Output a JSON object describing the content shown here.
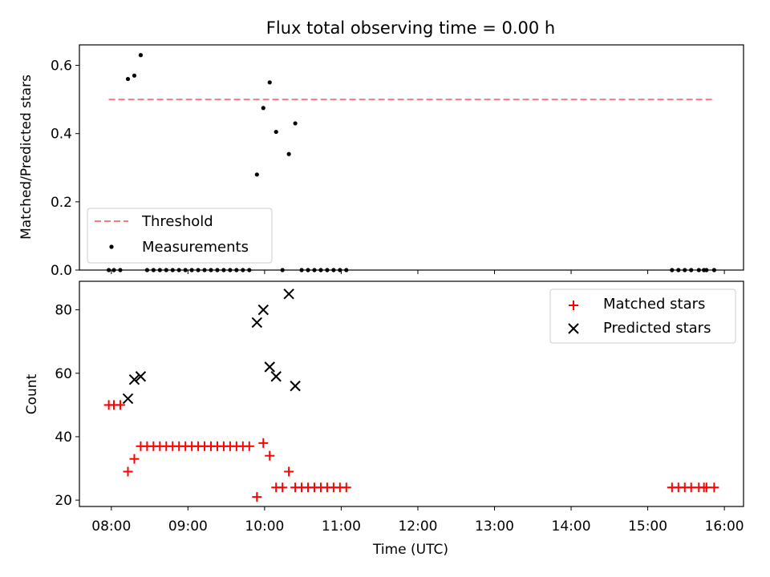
{
  "chart_data": [
    {
      "type": "scatter",
      "title": "Flux total observing time = 0.00 h",
      "xlabel": "",
      "ylabel": "Matched/Predicted stars",
      "xlim": [
        "07:35",
        "16:15"
      ],
      "ylim": [
        0,
        0.66
      ],
      "y_ticks": [
        "0.0",
        "0.2",
        "0.4",
        "0.6"
      ],
      "grid": false,
      "legend_position": "lower-left",
      "threshold": {
        "name": "Threshold",
        "value": 0.5,
        "x_range": [
          "07:58",
          "15:52"
        ],
        "color": "#f08080",
        "style": "dashed"
      },
      "series": [
        {
          "name": "Measurements",
          "marker": "dot",
          "color": "#000000",
          "points": [
            [
              "07:58",
              0
            ],
            [
              "08:02",
              0
            ],
            [
              "08:07",
              0
            ],
            [
              "08:13",
              0.56
            ],
            [
              "08:18",
              0.57
            ],
            [
              "08:23",
              0.63
            ],
            [
              "08:28",
              0
            ],
            [
              "08:33",
              0
            ],
            [
              "08:38",
              0
            ],
            [
              "08:43",
              0
            ],
            [
              "08:48",
              0
            ],
            [
              "08:53",
              0
            ],
            [
              "08:58",
              0
            ],
            [
              "09:03",
              0
            ],
            [
              "09:08",
              0
            ],
            [
              "09:13",
              0
            ],
            [
              "09:18",
              0
            ],
            [
              "09:23",
              0
            ],
            [
              "09:28",
              0
            ],
            [
              "09:33",
              0
            ],
            [
              "09:38",
              0
            ],
            [
              "09:43",
              0
            ],
            [
              "09:48",
              0
            ],
            [
              "09:54",
              0.28
            ],
            [
              "09:59",
              0.475
            ],
            [
              "10:04",
              0.55
            ],
            [
              "10:09",
              0.405
            ],
            [
              "10:14",
              0
            ],
            [
              "10:19",
              0.34
            ],
            [
              "10:24",
              0.43
            ],
            [
              "10:29",
              0
            ],
            [
              "10:34",
              0
            ],
            [
              "10:39",
              0
            ],
            [
              "10:44",
              0
            ],
            [
              "10:49",
              0
            ],
            [
              "10:54",
              0
            ],
            [
              "10:59",
              0
            ],
            [
              "11:04",
              0
            ],
            [
              "15:19",
              0
            ],
            [
              "15:24",
              0
            ],
            [
              "15:29",
              0
            ],
            [
              "15:34",
              0
            ],
            [
              "15:40",
              0
            ],
            [
              "15:44",
              0
            ],
            [
              "15:46",
              0
            ],
            [
              "15:52",
              0
            ]
          ]
        }
      ]
    },
    {
      "type": "scatter",
      "title": "",
      "xlabel": "Time (UTC)",
      "ylabel": "Count",
      "xlim": [
        "07:35",
        "16:15"
      ],
      "ylim": [
        18,
        89
      ],
      "x_ticks": [
        "08:00",
        "09:00",
        "10:00",
        "11:00",
        "12:00",
        "13:00",
        "14:00",
        "15:00",
        "16:00"
      ],
      "y_ticks": [
        "20",
        "40",
        "60",
        "80"
      ],
      "grid": false,
      "legend_position": "top-right",
      "series": [
        {
          "name": "Matched stars",
          "marker": "plus",
          "color": "#ff0000",
          "points": [
            [
              "07:58",
              50
            ],
            [
              "08:02",
              50
            ],
            [
              "08:07",
              50
            ],
            [
              "08:13",
              29
            ],
            [
              "08:18",
              33
            ],
            [
              "08:23",
              37
            ],
            [
              "08:28",
              37
            ],
            [
              "08:33",
              37
            ],
            [
              "08:38",
              37
            ],
            [
              "08:43",
              37
            ],
            [
              "08:48",
              37
            ],
            [
              "08:53",
              37
            ],
            [
              "08:58",
              37
            ],
            [
              "09:03",
              37
            ],
            [
              "09:08",
              37
            ],
            [
              "09:13",
              37
            ],
            [
              "09:18",
              37
            ],
            [
              "09:23",
              37
            ],
            [
              "09:28",
              37
            ],
            [
              "09:33",
              37
            ],
            [
              "09:38",
              37
            ],
            [
              "09:43",
              37
            ],
            [
              "09:48",
              37
            ],
            [
              "09:54",
              21
            ],
            [
              "09:59",
              38
            ],
            [
              "10:04",
              34
            ],
            [
              "10:09",
              24
            ],
            [
              "10:14",
              24
            ],
            [
              "10:19",
              29
            ],
            [
              "10:24",
              24
            ],
            [
              "10:29",
              24
            ],
            [
              "10:34",
              24
            ],
            [
              "10:39",
              24
            ],
            [
              "10:44",
              24
            ],
            [
              "10:49",
              24
            ],
            [
              "10:54",
              24
            ],
            [
              "10:59",
              24
            ],
            [
              "11:04",
              24
            ],
            [
              "15:19",
              24
            ],
            [
              "15:24",
              24
            ],
            [
              "15:29",
              24
            ],
            [
              "15:34",
              24
            ],
            [
              "15:40",
              24
            ],
            [
              "15:44",
              24
            ],
            [
              "15:46",
              24
            ],
            [
              "15:52",
              24
            ]
          ]
        },
        {
          "name": "Predicted stars",
          "marker": "x",
          "color": "#000000",
          "points": [
            [
              "08:13",
              52
            ],
            [
              "08:18",
              58
            ],
            [
              "08:23",
              59
            ],
            [
              "09:54",
              76
            ],
            [
              "09:59",
              80
            ],
            [
              "10:04",
              62
            ],
            [
              "10:09",
              59
            ],
            [
              "10:19",
              85
            ],
            [
              "10:24",
              56
            ]
          ]
        }
      ]
    }
  ]
}
